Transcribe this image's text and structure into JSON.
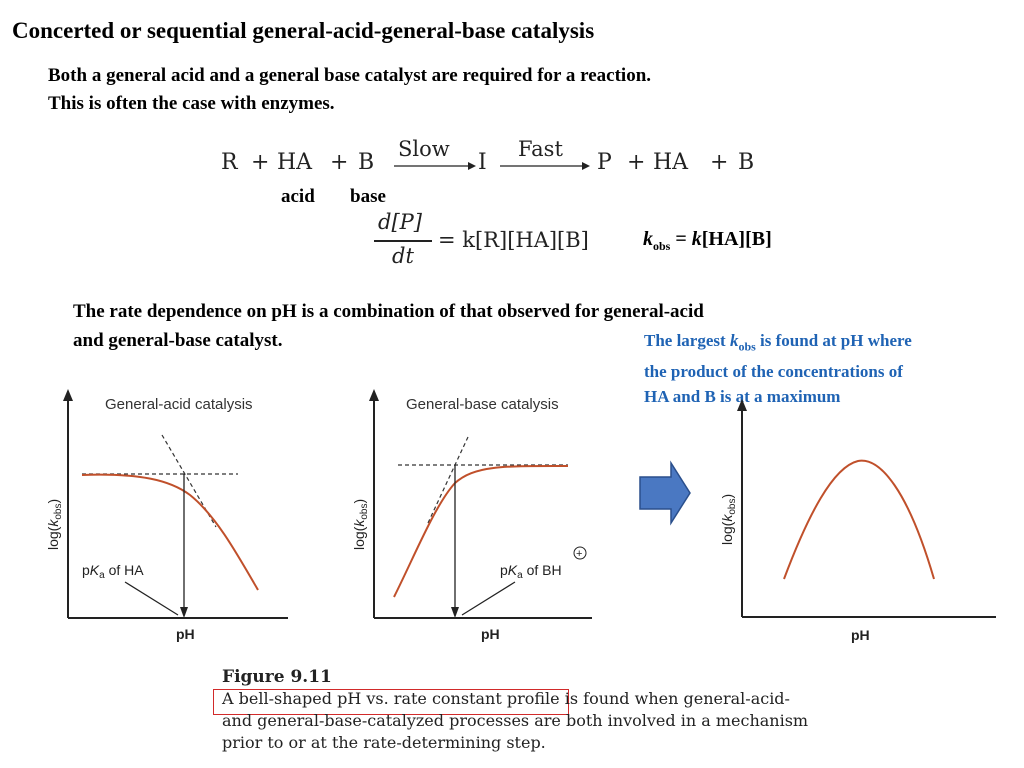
{
  "title": "Concerted or sequential general-acid-general-base catalysis",
  "intro": {
    "line1": "Both a general acid and a general base catalyst are required for a reaction.",
    "line2": "This is often the case with enzymes."
  },
  "equation": {
    "R": "R",
    "plus": "+",
    "HA": "HA",
    "B": "B",
    "slow": "Slow",
    "fast": "Fast",
    "I": "I",
    "P": "P",
    "acid_label": "acid",
    "base_label": "base",
    "dP": "d[P]",
    "dt": "dt",
    "rate_rhs": "= k[R][HA][B]"
  },
  "kobs": {
    "k": "k",
    "sub": "obs",
    "rest": " = ",
    "k2": "k",
    "rest2": "[HA][B]"
  },
  "rate_text": {
    "line1": "The rate dependence on pH is a combination of that observed for general-acid",
    "line2": "and general-base catalyst."
  },
  "note": {
    "pre": "The largest ",
    "k": "k",
    "sub": "obs",
    "post": " is found at pH where",
    "line2": "the product of the concentrations of",
    "line3": "HA and B is at a maximum"
  },
  "graphs": {
    "acid": {
      "title": "General-acid catalysis",
      "ylabel_pre": "log(",
      "ylabel_k": "k",
      "ylabel_sub": "obs",
      "ylabel_post": ")",
      "xlabel": "pH",
      "pka_pre": "p",
      "pka_k": "K",
      "pka_sub": "a",
      "pka_post": " of HA"
    },
    "base": {
      "title": "General-base catalysis",
      "ylabel_pre": "log(",
      "ylabel_k": "k",
      "ylabel_sub": "obs",
      "ylabel_post": ")",
      "xlabel": "pH",
      "pka_pre": "p",
      "pka_k": "K",
      "pka_sub": "a",
      "pka_post": " of BH",
      "charge": "+"
    },
    "bell": {
      "ylabel_pre": "log(",
      "ylabel_k": "k",
      "ylabel_sub": "obs",
      "ylabel_post": ")",
      "xlabel": "pH"
    }
  },
  "colors": {
    "curve": "#C0502B",
    "note": "#1F63B4",
    "arrow": "#4A78C2",
    "highlight": "#d12a2a"
  },
  "figure": {
    "title": "Figure 9.11",
    "line1_boxed": "A bell-shaped pH vs. rate constant profile",
    "line1_rest": " is found when general-acid-",
    "line2": "and general-base-catalyzed processes are both involved in a mechanism",
    "line3": "prior to or at the rate-determining step."
  }
}
